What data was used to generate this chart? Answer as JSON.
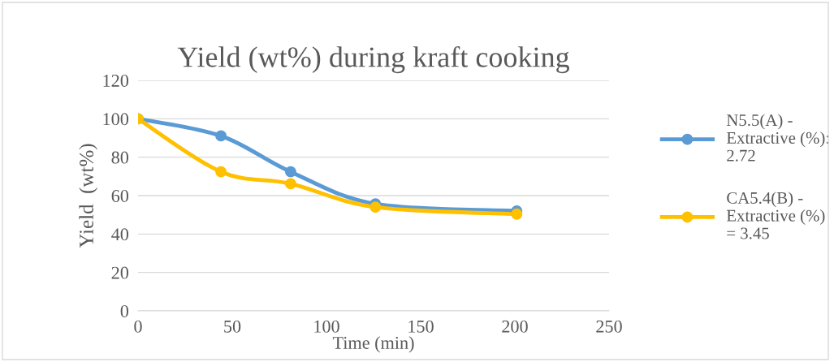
{
  "chart_data": {
    "type": "line",
    "title": "Yield (wt%) during kraft cooking",
    "xlabel": "Time (min)",
    "ylabel": "Yield  (wt%)",
    "xlim": [
      0,
      250
    ],
    "xticks": [
      0,
      50,
      100,
      150,
      200,
      250
    ],
    "ylim": [
      0,
      120
    ],
    "yticks": [
      0,
      20,
      40,
      60,
      80,
      100,
      120
    ],
    "grid": "y",
    "legend": "right",
    "marker": "circle",
    "line_style": "solid",
    "series": [
      {
        "name": "N5.5(A) -\nExtractive (%):\n2.72",
        "color": "#5b9bd5",
        "x": [
          0,
          44,
          81,
          126,
          201
        ],
        "values": [
          100,
          91.1,
          72.4,
          55.7,
          52.0
        ]
      },
      {
        "name": "CA5.4(B) -\nExtractive (%)\n= 3.45",
        "color": "#ffc000",
        "x": [
          0,
          44,
          81,
          126,
          201
        ],
        "values": [
          100,
          72.4,
          66.2,
          54.0,
          50.4
        ]
      }
    ]
  }
}
